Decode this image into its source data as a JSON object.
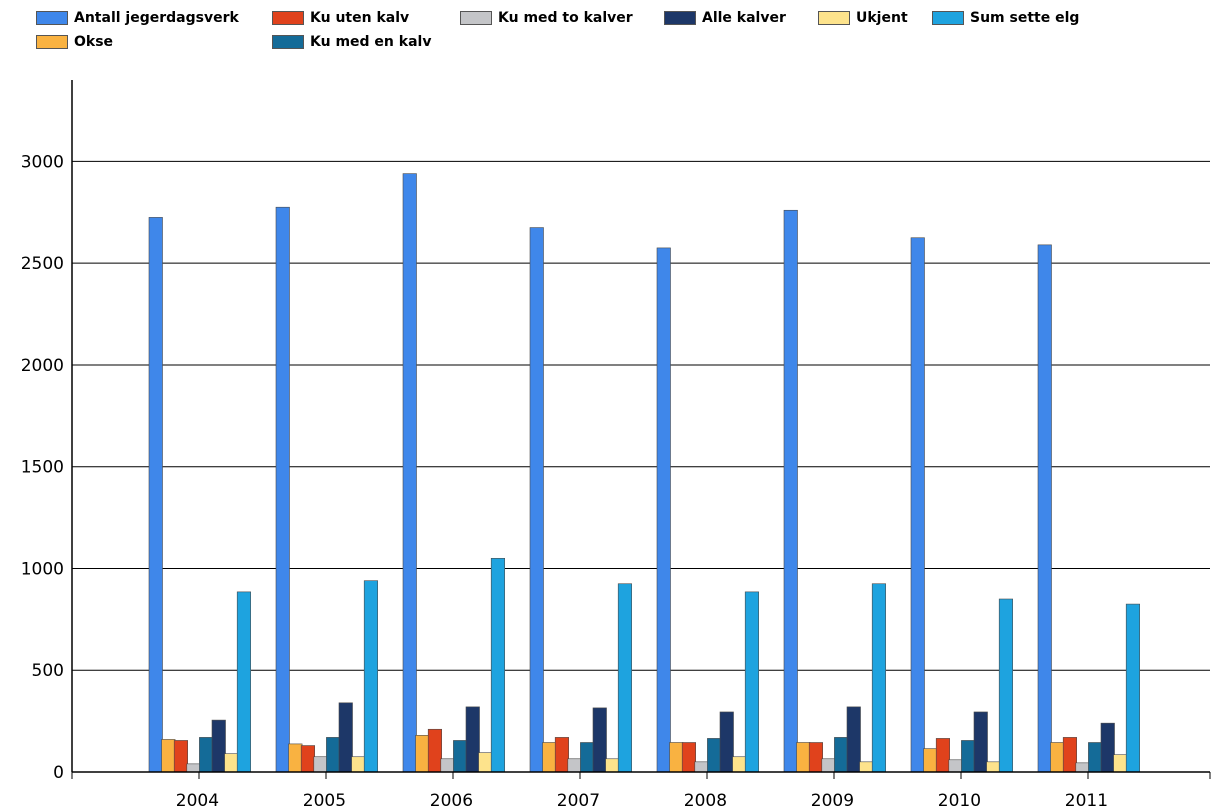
{
  "chart_data": {
    "type": "bar",
    "categories": [
      "2004",
      "2005",
      "2006",
      "2007",
      "2008",
      "2009",
      "2010",
      "2011"
    ],
    "series": [
      {
        "name": "Antall jegerdagsverk",
        "color": "#3f87ea",
        "values": [
          2725,
          2775,
          2940,
          2675,
          2575,
          2760,
          2625,
          2590
        ]
      },
      {
        "name": "Okse",
        "color": "#f9b241",
        "values": [
          160,
          138,
          180,
          145,
          145,
          145,
          115,
          145
        ]
      },
      {
        "name": "Ku uten kalv",
        "color": "#e0421c",
        "values": [
          155,
          130,
          210,
          170,
          145,
          145,
          165,
          170
        ]
      },
      {
        "name": "Ku med to kalver",
        "color": "#c4c5c8",
        "values": [
          40,
          75,
          65,
          65,
          50,
          65,
          60,
          45
        ]
      },
      {
        "name": "Ku med en kalv",
        "color": "#146b98",
        "values": [
          170,
          170,
          155,
          145,
          165,
          170,
          155,
          145
        ]
      },
      {
        "name": "Alle kalver",
        "color": "#1d3768",
        "values": [
          255,
          340,
          320,
          315,
          295,
          320,
          295,
          240
        ]
      },
      {
        "name": "Ukjent",
        "color": "#fde38c",
        "values": [
          90,
          75,
          95,
          65,
          75,
          50,
          50,
          85
        ]
      },
      {
        "name": "Sum sette elg",
        "color": "#1ea3df",
        "values": [
          885,
          940,
          1050,
          925,
          885,
          925,
          850,
          825
        ]
      }
    ],
    "ylim": [
      0,
      3400
    ],
    "yticks": [
      0,
      500,
      1000,
      1500,
      2000,
      2500,
      3000
    ],
    "grid": true,
    "legend_position": "top",
    "title": "",
    "xlabel": "",
    "ylabel": ""
  }
}
